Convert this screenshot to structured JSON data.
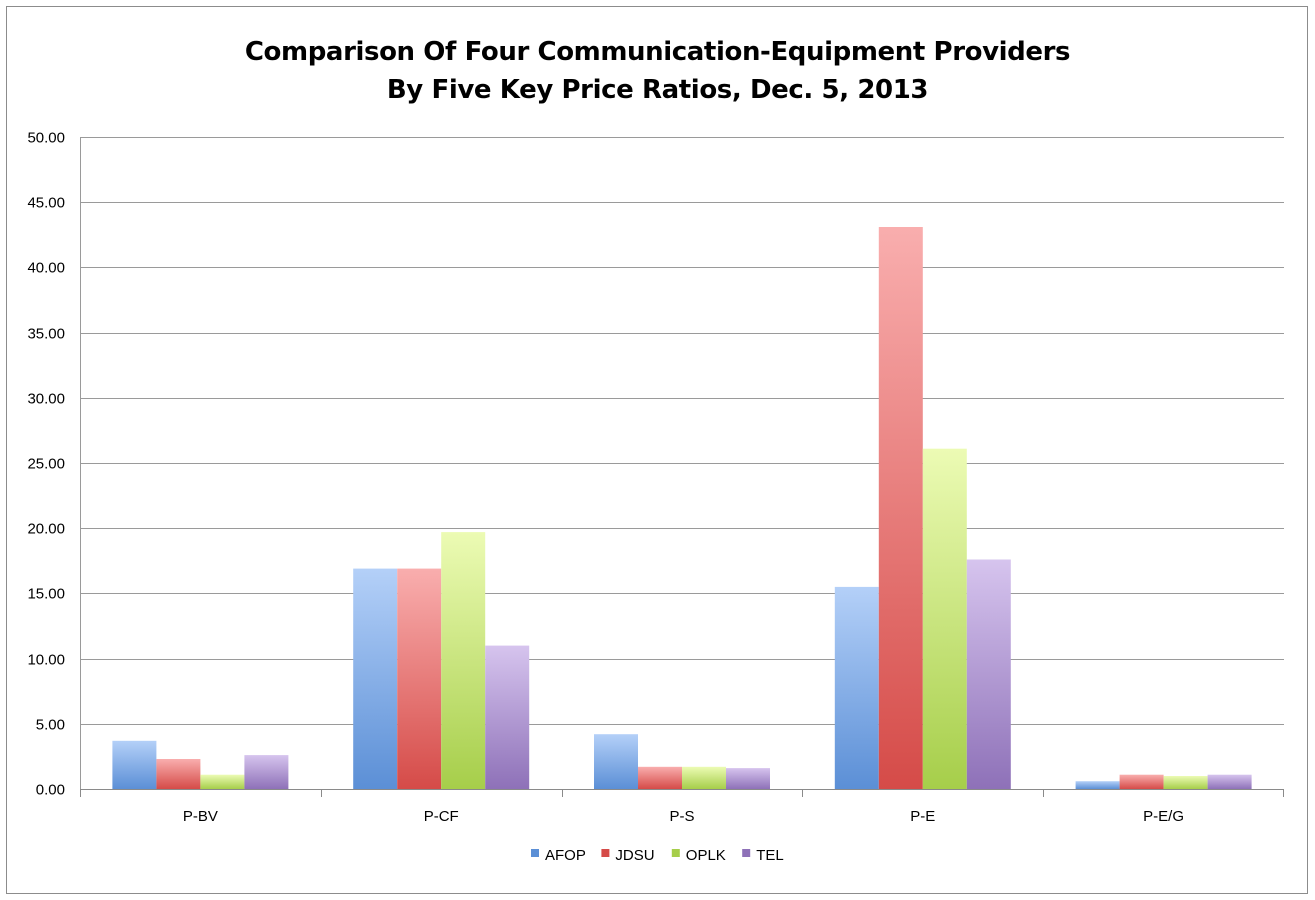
{
  "chart_data": {
    "type": "bar",
    "title": "Comparison Of Four Communication-Equipment Providers\nBy Five Key Price Ratios, Dec. 5, 2013",
    "title_lines": [
      "Comparison Of Four Communication-Equipment Providers",
      "By Five Key Price Ratios, Dec. 5, 2013"
    ],
    "xlabel": "",
    "ylabel": "",
    "categories": [
      "P-BV",
      "P-CF",
      "P-S",
      "P-E",
      "P-E/G"
    ],
    "series": [
      {
        "name": "AFOP",
        "color": "#5b8fd6",
        "color_light": "#b4d0f8",
        "values": [
          3.7,
          16.9,
          4.2,
          15.5,
          0.6
        ]
      },
      {
        "name": "JDSU",
        "color": "#d54b48",
        "color_light": "#f9aeae",
        "values": [
          2.3,
          16.9,
          1.7,
          43.1,
          1.1
        ]
      },
      {
        "name": "OPLK",
        "color": "#a6ce4a",
        "color_light": "#ecfbb4",
        "values": [
          1.1,
          19.7,
          1.7,
          26.1,
          1.0
        ]
      },
      {
        "name": "TEL",
        "color": "#8e71b8",
        "color_light": "#d6c4ee",
        "values": [
          2.6,
          11.0,
          1.6,
          17.6,
          1.1
        ]
      }
    ],
    "ylim": [
      0,
      50
    ],
    "yticks": [
      "0.00",
      "5.00",
      "10.00",
      "15.00",
      "20.00",
      "25.00",
      "30.00",
      "35.00",
      "40.00",
      "45.00",
      "50.00"
    ],
    "grid": true,
    "legend_position": "bottom"
  }
}
